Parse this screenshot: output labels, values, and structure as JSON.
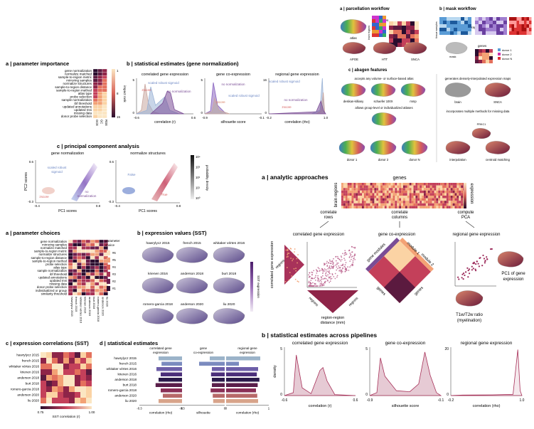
{
  "param_importance": {
    "heading": "a | parameter importance",
    "rows": [
      "gene normalization",
      "normalize matched",
      "sample-to-region metric",
      "mirroring samples",
      "normalize structures",
      "sample-to-region distance",
      "sample-to-region method",
      "atlas type",
      "probe selection",
      "sample normalization",
      "ibf threshold",
      "updated annotations",
      "updated mni",
      "missing data",
      "donor probe selection"
    ],
    "cols": [
      "GCE",
      "GC",
      "RGE"
    ],
    "scale_label": "impact rank",
    "scale_ticks": [
      "1",
      "8",
      "15"
    ]
  },
  "stat_estimates_gn": {
    "heading": "b | statistical estimates (gene normalization)",
    "panels": [
      {
        "title": "correlated gene expression",
        "xlabel": "correlation (r)",
        "xmin": "-0.6",
        "xmax": "0.6",
        "labels": [
          "zscore",
          "scaled robust sigmoid",
          "no normalization"
        ]
      },
      {
        "title": "gene co-expression",
        "xlabel": "silhouette score",
        "xmin": "-0.9",
        "xmax": "-0.1",
        "labels": [
          "no normalization",
          "scaled robust sigmoid",
          "zscore"
        ]
      },
      {
        "title": "regional gene expression",
        "xlabel": "correlation (rho)",
        "xmin": "-0.2",
        "xmax": "1.0",
        "labels": [
          "scaled robust sigmoid",
          "zscore",
          "no normalization"
        ]
      }
    ],
    "ytick_top": [
      "5",
      "5",
      "16"
    ],
    "ytick_zero": "0"
  },
  "pca": {
    "heading": "c | principal component analysis",
    "panels": [
      {
        "title": "gene normalization",
        "labels": [
          "scaled robust sigmoid",
          "zscore",
          "no normalization"
        ]
      },
      {
        "title": "normalize structures",
        "labels": [
          "False",
          "True"
        ]
      }
    ],
    "xlabel": "PC1 scores",
    "ylabel": "PC2 scores",
    "x_ticks": [
      "-0.4",
      "0.8"
    ],
    "y_ticks": [
      "0.6",
      "-0.3"
    ],
    "colorbar_label": "probability density",
    "colorbar_ticks": [
      "10⁴",
      "10³",
      "10²",
      "10¹",
      "10⁰"
    ]
  },
  "param_choices": {
    "heading": "a | parameter choices",
    "rows": [
      "gene normalization",
      "mirroring samples",
      "normalize matched",
      "sample-to-region metric",
      "normalize structures",
      "sample-to-region distance",
      "sample-to-region method",
      "probe selection",
      "atlas type",
      "sample normalization",
      "ibf threshold",
      "updated annotations",
      "updated mni",
      "missing data",
      "donor probe selection",
      "individualized or group",
      "similarity threshold"
    ],
    "cols": [
      "hawrylycz 2015",
      "french 2015",
      "whitaker vértes 2016",
      "krienen 2016",
      "anderson 2018",
      "burt 2018",
      "romero-garcia 2018",
      "anderson 2020",
      "liu 2020"
    ],
    "legend_title": "parameter choice",
    "legend_items": [
      "#6",
      "#5",
      "#4",
      "#3",
      "#2",
      "#1"
    ]
  },
  "expr_values": {
    "heading": "b | expression values (SST)",
    "brains": [
      "hawrylycz 2015",
      "french 2015",
      "whitaker vértes 2016",
      "krienen 2016",
      "anderson 2018",
      "burt 2018",
      "romero-garcia 2018",
      "anderson 2020",
      "liu 2020"
    ],
    "colorbar_label": "SST expression"
  },
  "expr_corr": {
    "heading": "c | expression correlations (SST)",
    "rows": [
      "hawrylycz 2015",
      "french 2015",
      "whitaker vértes 2016",
      "krienen 2016",
      "anderson 2018",
      "burt 2018",
      "romero-garcia 2018",
      "anderson 2020",
      "liu 2020"
    ],
    "xlabel": "SST correlation (r)",
    "tick_min": "0.75",
    "tick_max": "1.00"
  },
  "stat_estimates_d": {
    "heading": "d | statistical estimates",
    "rows": [
      "hawrylycz 2015",
      "french 2015",
      "whitaker vértes 2016",
      "krienen 2016",
      "anderson 2018",
      "burt 2018",
      "romero-garcia 2018",
      "anderson 2020",
      "liu 2020"
    ],
    "col_titles": [
      "correlated gene expression",
      "gene co-expression",
      "regional gene expression"
    ],
    "xlabels": [
      "correlation (rho)",
      "silhouette",
      "correlation (rho)"
    ],
    "ticks": [
      [
        "-0.3",
        "0"
      ],
      [
        "-0.3",
        "0"
      ],
      [
        "0",
        "1"
      ]
    ]
  },
  "parcellation": {
    "heading": "a | parcellation workflow",
    "atlas": "atlas",
    "genes": "genes",
    "brain_regions": "brain regions",
    "brains": [
      "APOE",
      "HTT",
      "SNCA"
    ]
  },
  "mask": {
    "heading": "b | mask workflow",
    "probes": "microarray probes",
    "samples": "tissue samples",
    "mask": "mask",
    "genes": "genes",
    "legend": [
      "donor 1",
      "donor 2",
      "donor N"
    ]
  },
  "abagen_features": {
    "heading": "c | abagen features",
    "text1": "accepts any volume- or surface-based atlas",
    "atlases": [
      "desikan-killiany",
      "schaefer 100X",
      "mmp"
    ],
    "text2": "allows group-level or individualized atlases",
    "donors": [
      "donor 1",
      "donor 2",
      "donor N"
    ],
    "text3": "generates densely-interpolated expression maps",
    "text4": "incorporates multiple methods for missing data",
    "maps": [
      "brain",
      "SNCA"
    ],
    "missing": [
      "interpolation",
      "centroid matching"
    ],
    "fill_label": "PRKC1"
  },
  "analytic": {
    "heading": "a | analytic approaches",
    "genes": "genes",
    "brain_regions": "brain regions",
    "expression": "expression",
    "ops": [
      "correlate rows",
      "correlate columns",
      "compute PCA"
    ],
    "panels": [
      "correlated gene expression",
      "gene co-expression",
      "regional gene expression"
    ],
    "cge_ylabel": "correlated gene expression",
    "regions": "regions",
    "distance": "region-region distance (mm)",
    "gene_modules": "gene modules",
    "module1": "module 1",
    "module2": "module 2",
    "pc1": "PC1 of gene expression",
    "t1t2": "T1w/T2w ratio (myelination)"
  },
  "pipelines": {
    "heading": "b | statistical estimates across pipelines",
    "ylabel": "density",
    "panels": [
      {
        "title": "correlated gene expression",
        "xlabel": "correlation (r)",
        "xmin": "-0.6",
        "xmax": "0.6"
      },
      {
        "title": "gene co-expression",
        "xlabel": "silhouette score",
        "xmin": "-0.9",
        "xmax": "-0.1"
      },
      {
        "title": "regional gene expression",
        "xlabel": "correlation (rho)",
        "xmin": "-0.2",
        "xmax": "1.0"
      }
    ],
    "ytop": [
      "5",
      "5",
      "20"
    ],
    "yzero": "0"
  },
  "chart_data": [
    {
      "type": "area",
      "title": "correlated gene expression",
      "xlabel": "correlation (r)",
      "xlim": [
        -0.6,
        0.6
      ],
      "ylabel": "density",
      "ylim": [
        0,
        5
      ],
      "series": [
        {
          "values": [
            [
              -0.6,
              0
            ],
            [
              -0.45,
              0.3
            ],
            [
              -0.4,
              4.2
            ],
            [
              -0.35,
              2.5
            ],
            [
              -0.3,
              0.8
            ],
            [
              -0.15,
              0.2
            ],
            [
              0.0,
              2.6
            ],
            [
              0.05,
              2.9
            ],
            [
              0.12,
              1.5
            ],
            [
              0.25,
              0.1
            ],
            [
              0.6,
              0
            ]
          ]
        }
      ]
    },
    {
      "type": "area",
      "title": "gene co-expression",
      "xlabel": "silhouette score",
      "xlim": [
        -0.9,
        -0.1
      ],
      "ylim": [
        0,
        5
      ],
      "series": [
        {
          "values": [
            [
              -0.9,
              0
            ],
            [
              -0.82,
              0.3
            ],
            [
              -0.78,
              3.9
            ],
            [
              -0.73,
              2.0
            ],
            [
              -0.6,
              0.5
            ],
            [
              -0.45,
              0.4
            ],
            [
              -0.35,
              1.2
            ],
            [
              -0.28,
              4.5
            ],
            [
              -0.22,
              2.1
            ],
            [
              -0.15,
              0.3
            ],
            [
              -0.1,
              0
            ]
          ]
        }
      ]
    },
    {
      "type": "line",
      "title": "regional gene expression",
      "xlabel": "correlation (rho)",
      "xlim": [
        -0.2,
        1.0
      ],
      "ylim": [
        0,
        20
      ],
      "series": [
        {
          "values": [
            [
              -0.2,
              0
            ],
            [
              0,
              0.2
            ],
            [
              0.5,
              0.3
            ],
            [
              0.85,
              0.5
            ],
            [
              0.93,
              19
            ],
            [
              0.97,
              2
            ],
            [
              1.0,
              0
            ]
          ]
        }
      ]
    }
  ]
}
